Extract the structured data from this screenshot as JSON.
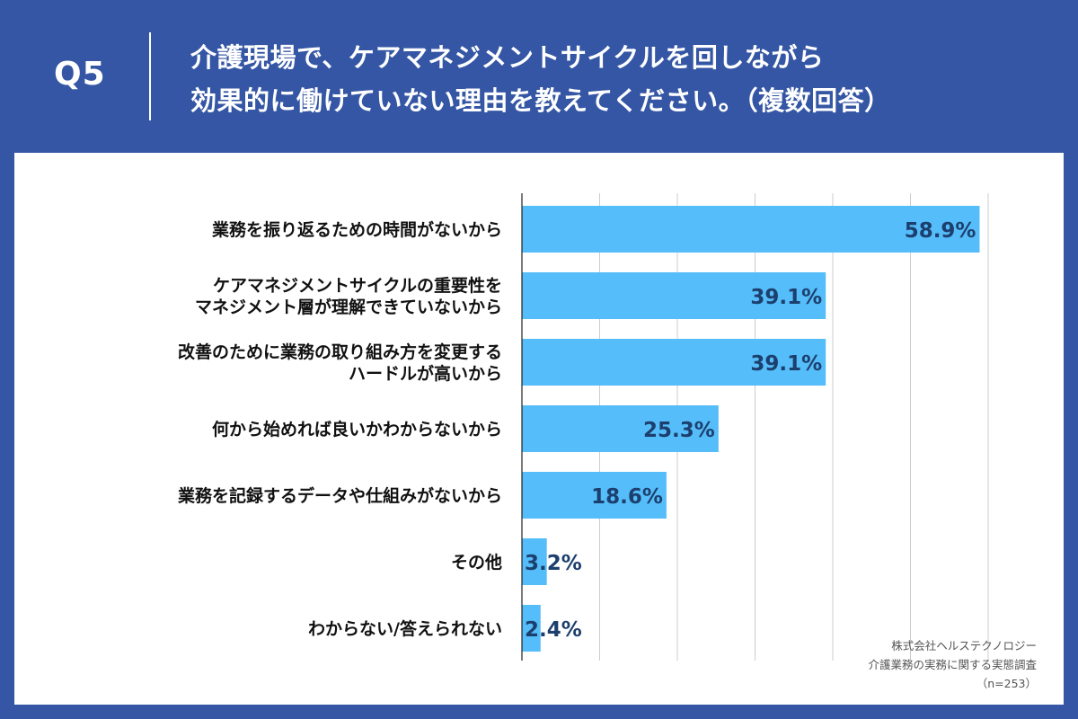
{
  "header": {
    "question_number": "Q5",
    "title_line1": "介護現場で、ケアマネジメントサイクルを回しながら",
    "title_line2": "効果的に働けていない理由を教えてください。（複数回答）"
  },
  "credit": {
    "company": "株式会社ヘルステクノロジー",
    "survey": "介護業務の実務に関する実態調査",
    "sample": "（n=253）"
  },
  "colors": {
    "background": "#3456a4",
    "bar": "#55bdf9",
    "value_label": "#1c3f6e",
    "grid": "#cccccc"
  },
  "chart_data": {
    "type": "bar",
    "orientation": "horizontal",
    "categories": [
      [
        "業務を振り返るための時間がないから"
      ],
      [
        "ケアマネジメントサイクルの重要性を",
        "マネジメント層が理解できていないから"
      ],
      [
        "改善のために業務の取り組み方を変更する",
        "ハードルが高いから"
      ],
      [
        "何から始めれば良いかわからないから"
      ],
      [
        "業務を記録するデータや仕組みがないから"
      ],
      [
        "その他"
      ],
      [
        "わからない/答えられない"
      ]
    ],
    "values": [
      58.9,
      39.1,
      39.1,
      25.3,
      18.6,
      3.2,
      2.4
    ],
    "value_labels": [
      "58.9%",
      "39.1%",
      "39.1%",
      "25.3%",
      "18.6%",
      "3.2%",
      "2.4%"
    ],
    "xlim": [
      0,
      60
    ],
    "grid": true
  }
}
